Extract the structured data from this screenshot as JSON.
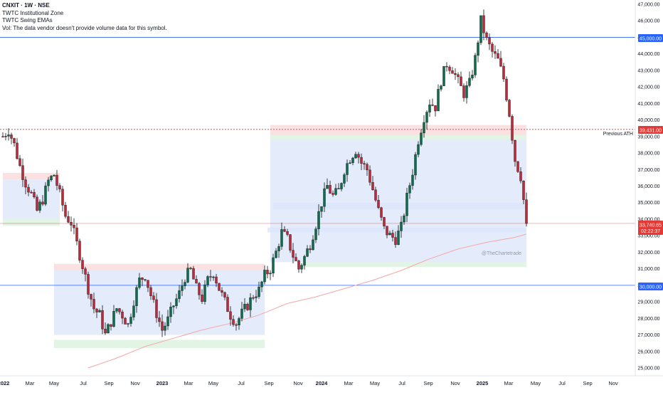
{
  "legend": {
    "title": "CNXIT · 1W · NSE",
    "indicator_1": "TWTC Institutional Zone",
    "indicator_2": "TWTC Swing EMAs",
    "volume_note": "Vol: The data vendor doesn't provide volume data for this symbol."
  },
  "annotations": {
    "previous_ath": "Previous ATH",
    "watermark": "@TheChartetrade"
  },
  "badges": {
    "level_45000": "45,000.00",
    "level_39431": "39,431.00",
    "level_30000": "30,000.00",
    "last_price": "33,740.65",
    "countdown": "02:22:37"
  },
  "colors": {
    "bull": "#0b6e4f",
    "bear": "#c0293b",
    "blue_line": "#2962ff",
    "red_dotted": "#e53935",
    "zone_blue": "#dbe6fb",
    "zone_red": "#fbd7da",
    "zone_green": "#d8f0d9",
    "ema": "#f4a6a6"
  },
  "chart_data": {
    "type": "candlestick",
    "title": "CNXIT · 1W · NSE",
    "y_axis_ticks": [
      25000,
      26000,
      27000,
      28000,
      29000,
      30000,
      31000,
      32000,
      33000,
      34000,
      35000,
      36000,
      37000,
      38000,
      39000,
      40000,
      41000,
      42000,
      43000,
      44000,
      45000,
      46000,
      47000
    ],
    "y_axis_labels": [
      "25,000.00",
      "26,000.00",
      "27,000.00",
      "28,000.00",
      "29,000.00",
      "30,000.00",
      "31,000.00",
      "32,000.00",
      "33,000.00",
      "34,000.00",
      "35,000.00",
      "36,000.00",
      "37,000.00",
      "38,000.00",
      "39,000.00",
      "40,000.00",
      "41,000.00",
      "42,000.00",
      "43,000.00",
      "44,000.00",
      "45,000.00",
      "46,000.00",
      "47,000.00"
    ],
    "x_axis_labels": [
      "2022",
      "Mar",
      "May",
      "Jul",
      "Sep",
      "Nov",
      "2023",
      "Mar",
      "May",
      "Jul",
      "Sep",
      "Nov",
      "2024",
      "Mar",
      "May",
      "Jul",
      "Sep",
      "Nov",
      "2025",
      "Mar",
      "May",
      "Jul",
      "Sep",
      "Nov"
    ],
    "x_axis_bold": [
      "2022",
      "2023",
      "2024",
      "2025"
    ],
    "horizontal_levels": [
      {
        "value": 45000,
        "style": "solid",
        "color": "#2962ff"
      },
      {
        "value": 39431,
        "style": "dotted",
        "color": "#e53935"
      },
      {
        "value": 30000,
        "style": "solid",
        "color": "#2962ff"
      }
    ],
    "last_price": 33740.65,
    "price_path": [
      [
        0,
        39000
      ],
      [
        2,
        39400
      ],
      [
        4,
        38500
      ],
      [
        6,
        37200
      ],
      [
        8,
        36200
      ],
      [
        10,
        35500
      ],
      [
        12,
        34500
      ],
      [
        14,
        35200
      ],
      [
        16,
        36300
      ],
      [
        18,
        36700
      ],
      [
        20,
        35500
      ],
      [
        22,
        34200
      ],
      [
        24,
        33800
      ],
      [
        26,
        32500
      ],
      [
        28,
        31200
      ],
      [
        30,
        29800
      ],
      [
        32,
        28600
      ],
      [
        34,
        28200
      ],
      [
        36,
        27000
      ],
      [
        38,
        27800
      ],
      [
        40,
        28600
      ],
      [
        42,
        28200
      ],
      [
        44,
        27600
      ],
      [
        46,
        29100
      ],
      [
        48,
        30300
      ],
      [
        50,
        30600
      ],
      [
        52,
        29400
      ],
      [
        54,
        28300
      ],
      [
        56,
        27300
      ],
      [
        58,
        27900
      ],
      [
        60,
        28800
      ],
      [
        62,
        29500
      ],
      [
        64,
        30500
      ],
      [
        66,
        30900
      ],
      [
        68,
        29800
      ],
      [
        70,
        29200
      ],
      [
        72,
        30300
      ],
      [
        74,
        30800
      ],
      [
        76,
        29800
      ],
      [
        78,
        29000
      ],
      [
        80,
        28200
      ],
      [
        82,
        27700
      ],
      [
        84,
        28300
      ],
      [
        86,
        28800
      ],
      [
        88,
        29400
      ],
      [
        90,
        29700
      ],
      [
        92,
        30600
      ],
      [
        94,
        31000
      ],
      [
        96,
        32000
      ],
      [
        98,
        33200
      ],
      [
        100,
        32800
      ],
      [
        102,
        31800
      ],
      [
        104,
        31000
      ],
      [
        106,
        31700
      ],
      [
        108,
        32500
      ],
      [
        110,
        33700
      ],
      [
        112,
        35000
      ],
      [
        114,
        36000
      ],
      [
        116,
        35400
      ],
      [
        118,
        35700
      ],
      [
        120,
        37000
      ],
      [
        122,
        37700
      ],
      [
        124,
        38200
      ],
      [
        126,
        37400
      ],
      [
        128,
        37000
      ],
      [
        130,
        35800
      ],
      [
        132,
        34500
      ],
      [
        134,
        33400
      ],
      [
        136,
        33000
      ],
      [
        138,
        32800
      ],
      [
        140,
        33500
      ],
      [
        142,
        35300
      ],
      [
        144,
        36900
      ],
      [
        146,
        38800
      ],
      [
        148,
        40200
      ],
      [
        150,
        41100
      ],
      [
        152,
        40800
      ],
      [
        154,
        42400
      ],
      [
        156,
        43400
      ],
      [
        158,
        43100
      ],
      [
        160,
        42300
      ],
      [
        162,
        41600
      ],
      [
        164,
        42200
      ],
      [
        166,
        43700
      ],
      [
        168,
        46000
      ],
      [
        170,
        44800
      ],
      [
        172,
        44100
      ],
      [
        174,
        43600
      ],
      [
        176,
        42500
      ],
      [
        178,
        40400
      ],
      [
        180,
        37600
      ],
      [
        182,
        36600
      ],
      [
        184,
        33740
      ]
    ],
    "ema_path": [
      [
        30,
        25000
      ],
      [
        40,
        25600
      ],
      [
        50,
        26300
      ],
      [
        60,
        26800
      ],
      [
        70,
        27300
      ],
      [
        80,
        27700
      ],
      [
        90,
        28200
      ],
      [
        100,
        28900
      ],
      [
        110,
        29300
      ],
      [
        120,
        29800
      ],
      [
        130,
        30300
      ],
      [
        140,
        30900
      ],
      [
        150,
        31600
      ],
      [
        160,
        32200
      ],
      [
        170,
        32600
      ],
      [
        180,
        32900
      ],
      [
        184,
        33100
      ]
    ],
    "zones": [
      {
        "kind": "blue",
        "x0": 0,
        "x1": 20,
        "y0": 34000,
        "y1": 36400
      },
      {
        "kind": "red",
        "x0": 0,
        "x1": 20,
        "y0": 36400,
        "y1": 36800
      },
      {
        "kind": "green",
        "x0": 0,
        "x1": 20,
        "y0": 33600,
        "y1": 34000
      },
      {
        "kind": "blue",
        "x0": 18,
        "x1": 92,
        "y0": 27000,
        "y1": 30900
      },
      {
        "kind": "red",
        "x0": 18,
        "x1": 92,
        "y0": 30900,
        "y1": 31300
      },
      {
        "kind": "green",
        "x0": 18,
        "x1": 92,
        "y0": 26200,
        "y1": 26700
      },
      {
        "kind": "blue",
        "x0": 94,
        "x1": 184,
        "y0": 31400,
        "y1": 38800
      },
      {
        "kind": "red",
        "x0": 94,
        "x1": 184,
        "y0": 39100,
        "y1": 39700
      },
      {
        "kind": "green",
        "x0": 94,
        "x1": 184,
        "y0": 38800,
        "y1": 39100
      },
      {
        "kind": "blue",
        "x0": 95,
        "x1": 184,
        "y0": 34600,
        "y1": 35000
      },
      {
        "kind": "blue",
        "x0": 93,
        "x1": 184,
        "y0": 33200,
        "y1": 33500
      },
      {
        "kind": "green",
        "x0": 105,
        "x1": 184,
        "y0": 31100,
        "y1": 31400
      }
    ]
  }
}
